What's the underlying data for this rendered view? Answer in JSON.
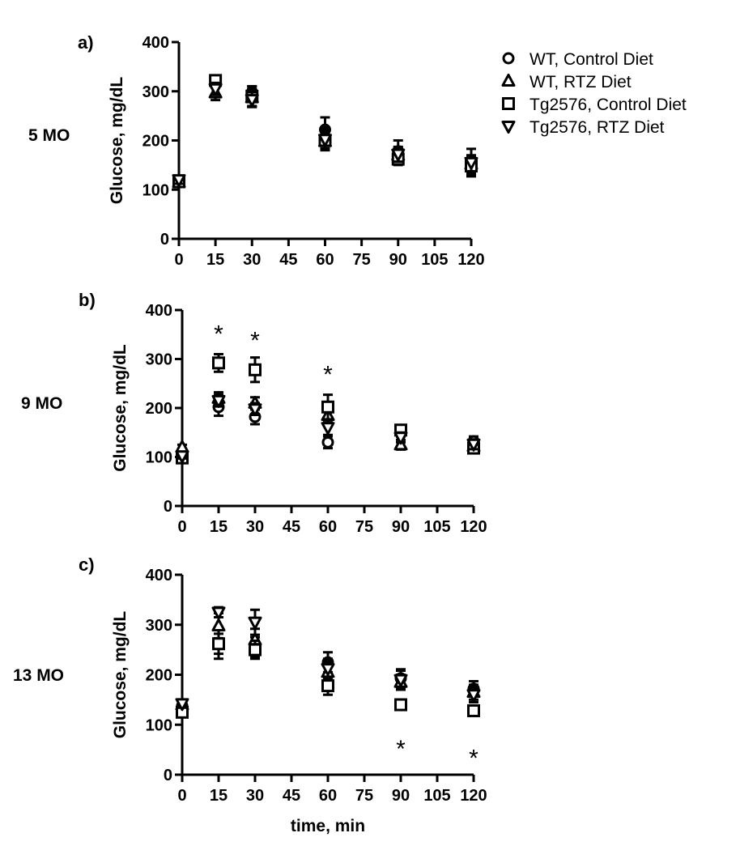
{
  "legend": [
    {
      "name": "WT, Control Diet",
      "marker": "circle"
    },
    {
      "name": "WT, RTZ Diet",
      "marker": "triangle-up"
    },
    {
      "name": "Tg2576, Control Diet",
      "marker": "square"
    },
    {
      "name": "Tg2576, RTZ Diet",
      "marker": "triangle-down"
    }
  ],
  "chart_data": [
    {
      "type": "scatter",
      "panel_letter": "a)",
      "title": "5 MO",
      "xlabel": "",
      "ylabel": "Glucose, mg/dL",
      "x_ticks": [
        0,
        15,
        30,
        45,
        60,
        75,
        90,
        105,
        120
      ],
      "y_ticks": [
        0,
        100,
        200,
        300,
        400
      ],
      "xlim": [
        0,
        120
      ],
      "ylim": [
        0,
        400
      ],
      "series": [
        {
          "name": "WT, Control Diet",
          "marker": "circle",
          "filled_mean": true,
          "points": [
            {
              "x": 0,
              "y": 118,
              "err": 8
            },
            {
              "x": 15,
              "y": 318,
              "err": 10
            },
            {
              "x": 30,
              "y": 298,
              "err": 12
            },
            {
              "x": 60,
              "y": 222,
              "err": 25
            },
            {
              "x": 90,
              "y": 178,
              "err": 22
            },
            {
              "x": 120,
              "y": 150,
              "err": 20
            }
          ]
        },
        {
          "name": "WT, RTZ Diet",
          "marker": "triangle-up",
          "points": [
            {
              "x": 0,
              "y": 115,
              "err": 8
            },
            {
              "x": 15,
              "y": 297,
              "err": 15
            },
            {
              "x": 30,
              "y": 287,
              "err": 18
            },
            {
              "x": 60,
              "y": 198,
              "err": 15
            },
            {
              "x": 90,
              "y": 170,
              "err": 15
            },
            {
              "x": 120,
              "y": 152,
              "err": 15
            }
          ]
        },
        {
          "name": "Tg2576, Control Diet",
          "marker": "square",
          "points": [
            {
              "x": 0,
              "y": 116,
              "err": 8
            },
            {
              "x": 15,
              "y": 322,
              "err": 8
            },
            {
              "x": 30,
              "y": 290,
              "err": 20
            },
            {
              "x": 60,
              "y": 200,
              "err": 20
            },
            {
              "x": 90,
              "y": 162,
              "err": 12
            },
            {
              "x": 120,
              "y": 148,
              "err": 15
            }
          ]
        },
        {
          "name": "Tg2576, RTZ Diet",
          "marker": "triangle-down",
          "points": [
            {
              "x": 0,
              "y": 120,
              "err": 8
            },
            {
              "x": 15,
              "y": 305,
              "err": 12
            },
            {
              "x": 30,
              "y": 283,
              "err": 15
            },
            {
              "x": 60,
              "y": 202,
              "err": 18
            },
            {
              "x": 90,
              "y": 172,
              "err": 15
            },
            {
              "x": 120,
              "y": 155,
              "err": 28
            }
          ]
        }
      ],
      "significance": []
    },
    {
      "type": "scatter",
      "panel_letter": "b)",
      "title": "9 MO",
      "xlabel": "",
      "ylabel": "Glucose, mg/dL",
      "x_ticks": [
        0,
        15,
        30,
        45,
        60,
        75,
        90,
        105,
        120
      ],
      "y_ticks": [
        0,
        100,
        200,
        300,
        400
      ],
      "xlim": [
        0,
        120
      ],
      "ylim": [
        0,
        400
      ],
      "series": [
        {
          "name": "WT, Control Diet",
          "marker": "circle",
          "points": [
            {
              "x": 0,
              "y": 100,
              "err": 5
            },
            {
              "x": 15,
              "y": 202,
              "err": 18
            },
            {
              "x": 30,
              "y": 182,
              "err": 15
            },
            {
              "x": 60,
              "y": 130,
              "err": 12
            },
            {
              "x": 90,
              "y": 152,
              "err": 10
            },
            {
              "x": 120,
              "y": 132,
              "err": 10
            }
          ]
        },
        {
          "name": "WT, RTZ Diet",
          "marker": "triangle-up",
          "points": [
            {
              "x": 0,
              "y": 120,
              "err": 5
            },
            {
              "x": 15,
              "y": 220,
              "err": 12
            },
            {
              "x": 30,
              "y": 210,
              "err": 12
            },
            {
              "x": 60,
              "y": 185,
              "err": 15
            },
            {
              "x": 90,
              "y": 125,
              "err": 10
            },
            {
              "x": 120,
              "y": 122,
              "err": 10
            }
          ]
        },
        {
          "name": "Tg2576, Control Diet",
          "marker": "square",
          "points": [
            {
              "x": 0,
              "y": 98,
              "err": 5
            },
            {
              "x": 15,
              "y": 292,
              "err": 18
            },
            {
              "x": 30,
              "y": 278,
              "err": 25
            },
            {
              "x": 60,
              "y": 202,
              "err": 25
            },
            {
              "x": 90,
              "y": 155,
              "err": 10
            },
            {
              "x": 120,
              "y": 118,
              "err": 10
            }
          ]
        },
        {
          "name": "Tg2576, RTZ Diet",
          "marker": "triangle-down",
          "points": [
            {
              "x": 0,
              "y": 102,
              "err": 5
            },
            {
              "x": 15,
              "y": 215,
              "err": 12
            },
            {
              "x": 30,
              "y": 198,
              "err": 12
            },
            {
              "x": 60,
              "y": 160,
              "err": 15
            },
            {
              "x": 90,
              "y": 140,
              "err": 10
            },
            {
              "x": 120,
              "y": 126,
              "err": 10
            }
          ]
        }
      ],
      "significance": [
        {
          "x": 15,
          "y": 358,
          "label": "*"
        },
        {
          "x": 30,
          "y": 345,
          "label": "*"
        },
        {
          "x": 60,
          "y": 275,
          "label": "*"
        }
      ]
    },
    {
      "type": "scatter",
      "panel_letter": "c)",
      "title": "13 MO",
      "xlabel": "time, min",
      "ylabel": "Glucose, mg/dL",
      "x_ticks": [
        0,
        15,
        30,
        45,
        60,
        75,
        90,
        105,
        120
      ],
      "y_ticks": [
        0,
        100,
        200,
        300,
        400
      ],
      "xlim": [
        0,
        120
      ],
      "ylim": [
        0,
        400
      ],
      "series": [
        {
          "name": "WT, Control Diet",
          "marker": "circle",
          "filled_mean": true,
          "points": [
            {
              "x": 0,
              "y": 138,
              "err": 8
            },
            {
              "x": 15,
              "y": 262,
              "err": 30
            },
            {
              "x": 30,
              "y": 255,
              "err": 20
            },
            {
              "x": 60,
              "y": 225,
              "err": 20
            },
            {
              "x": 90,
              "y": 193,
              "err": 18
            },
            {
              "x": 120,
              "y": 172,
              "err": 15
            }
          ]
        },
        {
          "name": "WT, RTZ Diet",
          "marker": "triangle-up",
          "points": [
            {
              "x": 0,
              "y": 140,
              "err": 8
            },
            {
              "x": 15,
              "y": 298,
              "err": 25
            },
            {
              "x": 30,
              "y": 270,
              "err": 22
            },
            {
              "x": 60,
              "y": 205,
              "err": 20
            },
            {
              "x": 90,
              "y": 185,
              "err": 15
            },
            {
              "x": 120,
              "y": 165,
              "err": 15
            }
          ]
        },
        {
          "name": "Tg2576, Control Diet",
          "marker": "square",
          "points": [
            {
              "x": 0,
              "y": 125,
              "err": 8
            },
            {
              "x": 15,
              "y": 262,
              "err": 20
            },
            {
              "x": 30,
              "y": 250,
              "err": 18
            },
            {
              "x": 60,
              "y": 178,
              "err": 18
            },
            {
              "x": 90,
              "y": 140,
              "err": 10
            },
            {
              "x": 120,
              "y": 128,
              "err": 8
            }
          ]
        },
        {
          "name": "Tg2576, RTZ Diet",
          "marker": "triangle-down",
          "points": [
            {
              "x": 0,
              "y": 142,
              "err": 8
            },
            {
              "x": 15,
              "y": 325,
              "err": 10
            },
            {
              "x": 30,
              "y": 305,
              "err": 25
            },
            {
              "x": 60,
              "y": 212,
              "err": 20
            },
            {
              "x": 90,
              "y": 190,
              "err": 18
            },
            {
              "x": 120,
              "y": 160,
              "err": 15
            }
          ]
        }
      ],
      "significance": [
        {
          "x": 90,
          "y": 58,
          "label": "*"
        },
        {
          "x": 120,
          "y": 40,
          "label": "*"
        }
      ]
    }
  ]
}
